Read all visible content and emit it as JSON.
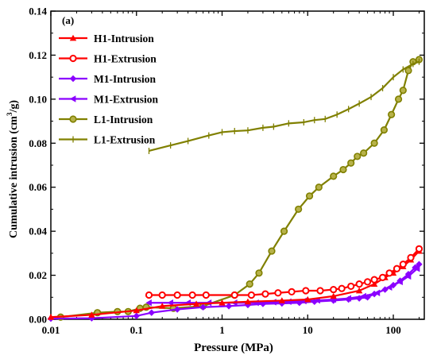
{
  "chart_data": {
    "type": "line",
    "panel_label": "(a)",
    "xlabel": "Pressure (MPa)",
    "ylabel_main": "Cumulative intrusion (cm",
    "ylabel_sup": "3",
    "ylabel_tail": "/g)",
    "x_scale": "log",
    "xlim": [
      0.01,
      230
    ],
    "ylim": [
      0,
      0.14
    ],
    "x_ticks": [
      0.01,
      0.1,
      1,
      10,
      100
    ],
    "x_tick_labels": [
      "0.01",
      "0.1",
      "1",
      "10",
      "100"
    ],
    "y_ticks": [
      0,
      0.02,
      0.04,
      0.06,
      0.08,
      0.1,
      0.12,
      0.14
    ],
    "y_tick_labels": [
      "0.00",
      "0.02",
      "0.04",
      "0.06",
      "0.08",
      "0.10",
      "0.12",
      "0.14"
    ],
    "legend_position": "top-left",
    "series": [
      {
        "name": "H1-Intrusion",
        "color": "#ff0000",
        "marker": "triangle",
        "x": [
          0.01,
          0.03,
          0.1,
          0.2,
          0.5,
          1,
          2,
          5,
          10,
          20,
          40,
          60,
          80,
          100,
          130,
          160,
          200
        ],
        "y": [
          0.001,
          0.002,
          0.004,
          0.006,
          0.007,
          0.0075,
          0.008,
          0.0085,
          0.009,
          0.0105,
          0.013,
          0.016,
          0.019,
          0.021,
          0.024,
          0.027,
          0.031
        ]
      },
      {
        "name": "H1-Extrusion",
        "color": "#ff0000",
        "marker": "circle",
        "x": [
          0.14,
          0.2,
          0.3,
          0.45,
          0.65,
          1.4,
          2.2,
          3.2,
          4.5,
          6.5,
          9.5,
          14,
          20,
          25,
          32,
          40,
          50,
          60,
          75,
          90,
          110,
          130,
          160,
          200
        ],
        "y": [
          0.011,
          0.011,
          0.011,
          0.011,
          0.011,
          0.011,
          0.011,
          0.0115,
          0.012,
          0.0125,
          0.013,
          0.013,
          0.0135,
          0.014,
          0.015,
          0.016,
          0.017,
          0.018,
          0.019,
          0.021,
          0.023,
          0.025,
          0.028,
          0.032
        ]
      },
      {
        "name": "M1-Intrusion",
        "color": "#8b00ff",
        "marker": "diamond",
        "x": [
          0.01,
          0.03,
          0.1,
          0.15,
          0.3,
          0.6,
          1.2,
          2,
          3,
          5,
          8,
          12,
          20,
          30,
          40,
          50,
          60,
          80,
          100,
          120,
          150,
          180,
          200
        ],
        "y": [
          0.0003,
          0.0005,
          0.0015,
          0.003,
          0.0045,
          0.0055,
          0.006,
          0.0065,
          0.007,
          0.0072,
          0.0075,
          0.008,
          0.0085,
          0.009,
          0.0095,
          0.01,
          0.0115,
          0.0135,
          0.0155,
          0.0175,
          0.0205,
          0.0235,
          0.025
        ]
      },
      {
        "name": "M1-Extrusion",
        "color": "#8b00ff",
        "marker": "triangle-left",
        "x": [
          0.14,
          0.25,
          0.4,
          0.7,
          1.4,
          2.5,
          4,
          6,
          9,
          13,
          20,
          30,
          45,
          65,
          90,
          120,
          150,
          190
        ],
        "y": [
          0.0075,
          0.0075,
          0.0075,
          0.0075,
          0.0075,
          0.0075,
          0.0078,
          0.008,
          0.0083,
          0.0086,
          0.009,
          0.0095,
          0.0105,
          0.012,
          0.0145,
          0.017,
          0.0195,
          0.023
        ]
      },
      {
        "name": "L1-Intrusion",
        "color": "#808000",
        "marker": "circle-dot",
        "x": [
          0.013,
          0.035,
          0.06,
          0.08,
          0.11,
          0.13,
          0.27,
          0.6,
          1.4,
          2.1,
          2.7,
          3.8,
          5.3,
          7.8,
          10.5,
          13.5,
          20,
          26,
          32,
          38,
          45,
          60,
          78,
          95,
          115,
          130,
          150,
          170,
          200
        ],
        "y": [
          0.001,
          0.003,
          0.0035,
          0.0035,
          0.005,
          0.0055,
          0.005,
          0.006,
          0.011,
          0.016,
          0.021,
          0.031,
          0.04,
          0.05,
          0.056,
          0.06,
          0.065,
          0.068,
          0.071,
          0.074,
          0.0755,
          0.08,
          0.086,
          0.093,
          0.1,
          0.104,
          0.113,
          0.117,
          0.118
        ]
      },
      {
        "name": "L1-Extrusion",
        "color": "#808000",
        "marker": "plus",
        "x": [
          0.14,
          0.25,
          0.4,
          0.7,
          1.0,
          1.4,
          2.0,
          3.0,
          4.0,
          6.0,
          9.0,
          12,
          16,
          22,
          30,
          40,
          55,
          75,
          100,
          130,
          170,
          200
        ],
        "y": [
          0.0765,
          0.079,
          0.081,
          0.0835,
          0.085,
          0.0855,
          0.0858,
          0.087,
          0.0875,
          0.089,
          0.0895,
          0.0905,
          0.091,
          0.093,
          0.0955,
          0.098,
          0.101,
          0.105,
          0.11,
          0.1135,
          0.116,
          0.117
        ]
      }
    ]
  }
}
